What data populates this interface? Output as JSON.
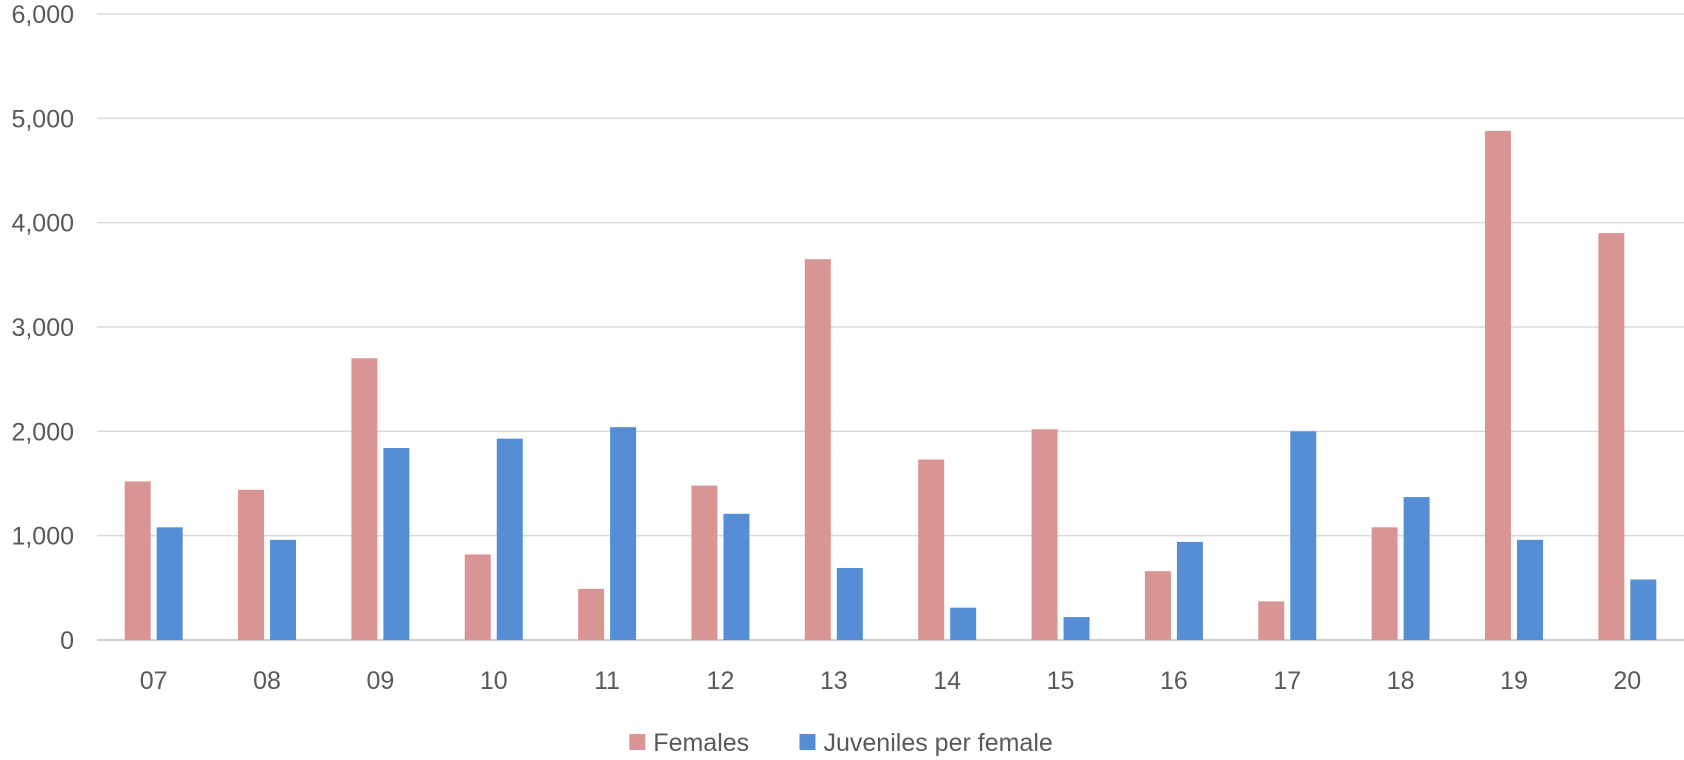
{
  "chart_data": {
    "type": "bar",
    "title": "",
    "xlabel": "",
    "ylabel": "",
    "categories": [
      "07",
      "08",
      "09",
      "10",
      "11",
      "12",
      "13",
      "14",
      "15",
      "16",
      "17",
      "18",
      "19",
      "20"
    ],
    "series": [
      {
        "name": "Females",
        "color": "#d99594",
        "values": [
          1520,
          1440,
          2700,
          820,
          490,
          1480,
          3650,
          1730,
          2020,
          660,
          370,
          1080,
          4880,
          3900
        ]
      },
      {
        "name": "Juveniles per female",
        "color": "#558ed5",
        "values": [
          1080,
          960,
          1840,
          1930,
          2040,
          1210,
          690,
          310,
          220,
          940,
          2000,
          1370,
          960,
          580
        ]
      }
    ],
    "ylim": [
      0,
      6000
    ],
    "yticks": [
      "0",
      "1,000",
      "2,000",
      "3,000",
      "4,000",
      "5,000",
      "6,000"
    ],
    "grid": true,
    "legend_position": "bottom"
  }
}
